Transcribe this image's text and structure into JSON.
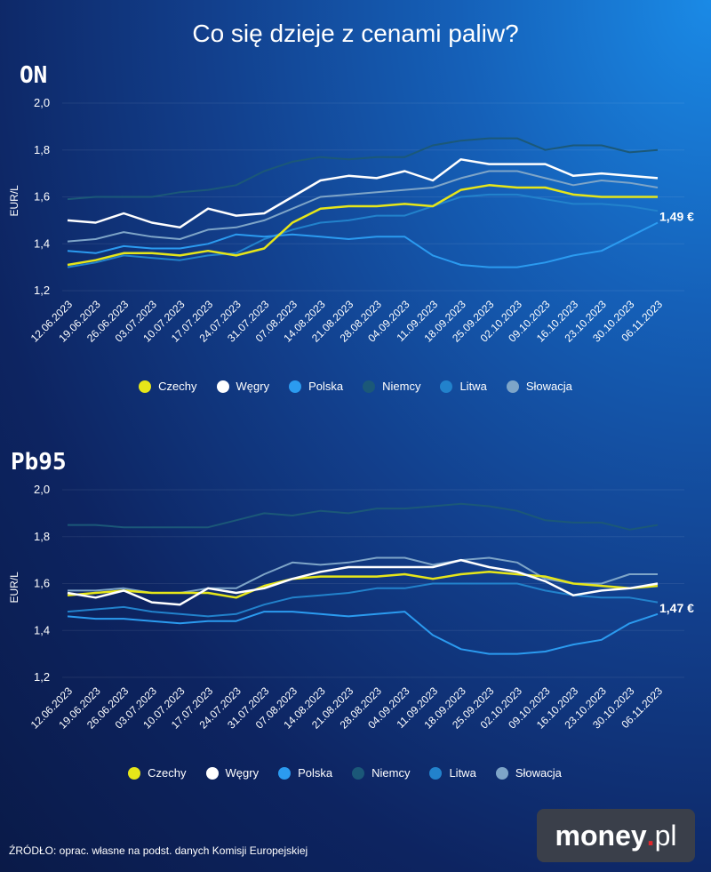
{
  "title": "Co się dzieje z cenami paliw?",
  "source": "ŹRÓDŁO: oprac. własne na podst. danych Komisji Europejskiej",
  "logo": {
    "text": "money",
    "dot": ".",
    "suffix": "pl"
  },
  "colors": {
    "Czechy": "#e6e619",
    "Węgry": "#ffffff",
    "Polska": "#2b9bf0",
    "Niemcy": "#1b5878",
    "Litwa": "#2282cc",
    "Słowacja": "#7ea5c8"
  },
  "chart_data": [
    {
      "type": "line",
      "title": "ON",
      "ylabel": "EUR/L",
      "ylim": [
        1.2,
        2.0
      ],
      "yticks": [
        "2,0",
        "1,8",
        "1,6",
        "1,4",
        "1,2"
      ],
      "grid": true,
      "legend": "bottom",
      "annotation": "1,49 €",
      "categories": [
        "12.06.2023",
        "19.06.2023",
        "26.06.2023",
        "03.07.2023",
        "10.07.2023",
        "17.07.2023",
        "24.07.2023",
        "31.07.2023",
        "07.08.2023",
        "14.08.2023",
        "21.08.2023",
        "28.08.2023",
        "04.09.2023",
        "11.09.2023",
        "18.09.2023",
        "25.09.2023",
        "02.10.2023",
        "09.10.2023",
        "16.10.2023",
        "23.10.2023",
        "30.10.2023",
        "06.11.2023"
      ],
      "series": [
        {
          "name": "Niemcy",
          "values": [
            1.59,
            1.6,
            1.6,
            1.6,
            1.62,
            1.63,
            1.65,
            1.71,
            1.75,
            1.77,
            1.76,
            1.77,
            1.77,
            1.82,
            1.84,
            1.85,
            1.85,
            1.8,
            1.82,
            1.82,
            1.79,
            1.8
          ]
        },
        {
          "name": "Litwa",
          "values": [
            1.3,
            1.32,
            1.35,
            1.34,
            1.33,
            1.35,
            1.36,
            1.42,
            1.46,
            1.49,
            1.5,
            1.52,
            1.52,
            1.56,
            1.6,
            1.61,
            1.61,
            1.59,
            1.57,
            1.57,
            1.56,
            1.54
          ]
        },
        {
          "name": "Słowacja",
          "values": [
            1.41,
            1.42,
            1.45,
            1.43,
            1.42,
            1.46,
            1.47,
            1.5,
            1.55,
            1.6,
            1.61,
            1.62,
            1.63,
            1.64,
            1.68,
            1.71,
            1.71,
            1.68,
            1.65,
            1.67,
            1.66,
            1.64
          ]
        },
        {
          "name": "Polska",
          "values": [
            1.37,
            1.36,
            1.39,
            1.38,
            1.38,
            1.4,
            1.44,
            1.43,
            1.44,
            1.43,
            1.42,
            1.43,
            1.43,
            1.35,
            1.31,
            1.3,
            1.3,
            1.32,
            1.35,
            1.37,
            1.43,
            1.49
          ]
        },
        {
          "name": "Czechy",
          "values": [
            1.31,
            1.33,
            1.36,
            1.36,
            1.35,
            1.37,
            1.35,
            1.38,
            1.49,
            1.55,
            1.56,
            1.56,
            1.57,
            1.56,
            1.63,
            1.65,
            1.64,
            1.64,
            1.61,
            1.6,
            1.6,
            1.6
          ]
        },
        {
          "name": "Węgry",
          "values": [
            1.5,
            1.49,
            1.53,
            1.49,
            1.47,
            1.55,
            1.52,
            1.53,
            1.6,
            1.67,
            1.69,
            1.68,
            1.71,
            1.67,
            1.76,
            1.74,
            1.74,
            1.74,
            1.69,
            1.7,
            1.69,
            1.68
          ]
        }
      ]
    },
    {
      "type": "line",
      "title": "Pb95",
      "ylabel": "EUR/L",
      "ylim": [
        1.2,
        2.0
      ],
      "yticks": [
        "2,0",
        "1,8",
        "1,6",
        "1,4",
        "1,2"
      ],
      "grid": true,
      "legend": "bottom",
      "annotation": "1,47 €",
      "categories": [
        "12.06.2023",
        "19.06.2023",
        "26.06.2023",
        "03.07.2023",
        "10.07.2023",
        "17.07.2023",
        "24.07.2023",
        "31.07.2023",
        "07.08.2023",
        "14.08.2023",
        "21.08.2023",
        "28.08.2023",
        "04.09.2023",
        "11.09.2023",
        "18.09.2023",
        "25.09.2023",
        "02.10.2023",
        "09.10.2023",
        "16.10.2023",
        "23.10.2023",
        "30.10.2023",
        "06.11.2023"
      ],
      "series": [
        {
          "name": "Niemcy",
          "values": [
            1.85,
            1.85,
            1.84,
            1.84,
            1.84,
            1.84,
            1.87,
            1.9,
            1.89,
            1.91,
            1.9,
            1.92,
            1.92,
            1.93,
            1.94,
            1.93,
            1.91,
            1.87,
            1.86,
            1.86,
            1.83,
            1.85
          ]
        },
        {
          "name": "Litwa",
          "values": [
            1.48,
            1.49,
            1.5,
            1.48,
            1.47,
            1.46,
            1.47,
            1.51,
            1.54,
            1.55,
            1.56,
            1.58,
            1.58,
            1.6,
            1.6,
            1.6,
            1.6,
            1.57,
            1.55,
            1.54,
            1.54,
            1.52
          ]
        },
        {
          "name": "Słowacja",
          "values": [
            1.57,
            1.57,
            1.58,
            1.56,
            1.56,
            1.58,
            1.58,
            1.64,
            1.69,
            1.68,
            1.69,
            1.71,
            1.71,
            1.68,
            1.7,
            1.71,
            1.69,
            1.62,
            1.6,
            1.6,
            1.64,
            1.64
          ]
        },
        {
          "name": "Polska",
          "values": [
            1.46,
            1.45,
            1.45,
            1.44,
            1.43,
            1.44,
            1.44,
            1.48,
            1.48,
            1.47,
            1.46,
            1.47,
            1.48,
            1.38,
            1.32,
            1.3,
            1.3,
            1.31,
            1.34,
            1.36,
            1.43,
            1.47
          ]
        },
        {
          "name": "Czechy",
          "values": [
            1.55,
            1.56,
            1.57,
            1.56,
            1.56,
            1.56,
            1.54,
            1.59,
            1.62,
            1.63,
            1.63,
            1.63,
            1.64,
            1.62,
            1.64,
            1.65,
            1.64,
            1.63,
            1.6,
            1.59,
            1.58,
            1.59
          ]
        },
        {
          "name": "Węgry",
          "values": [
            1.56,
            1.54,
            1.57,
            1.52,
            1.51,
            1.58,
            1.56,
            1.58,
            1.62,
            1.65,
            1.67,
            1.67,
            1.67,
            1.67,
            1.7,
            1.67,
            1.65,
            1.61,
            1.55,
            1.57,
            1.58,
            1.6
          ]
        }
      ]
    }
  ],
  "legend": [
    "Czechy",
    "Węgry",
    "Polska",
    "Niemcy",
    "Litwa",
    "Słowacja"
  ]
}
